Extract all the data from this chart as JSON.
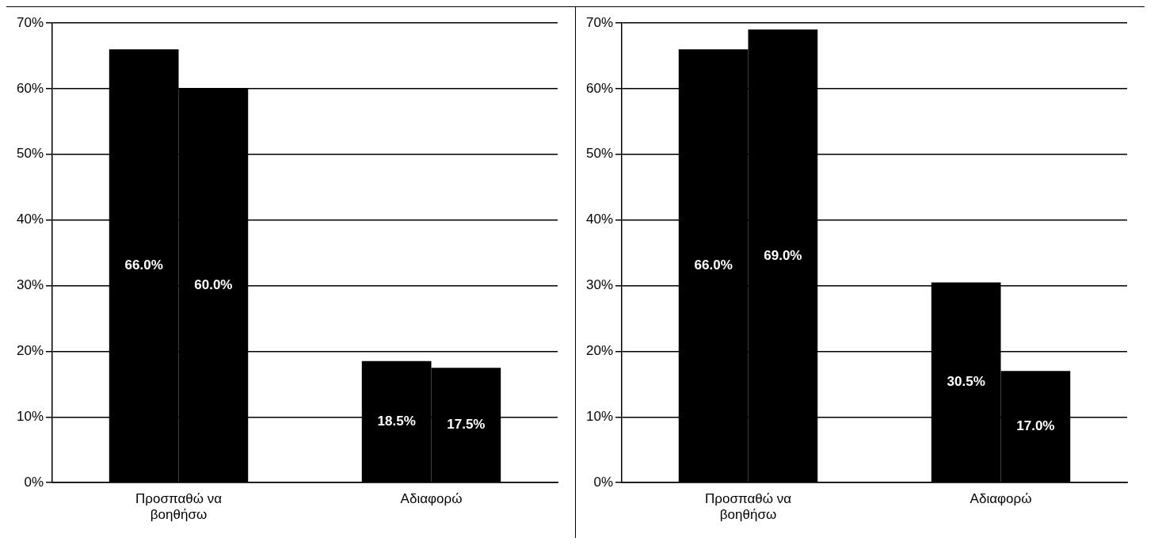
{
  "chart_data": [
    {
      "type": "bar",
      "categories": [
        "Προσπαθώ να βοηθήσω",
        "Αδιαφορώ"
      ],
      "series": [
        {
          "color": "#000000",
          "values": [
            66.0,
            18.5
          ],
          "value_labels": [
            "66.0%",
            "18.5%"
          ]
        },
        {
          "color": "#000000",
          "values": [
            60.0,
            17.5
          ],
          "value_labels": [
            "60.0%",
            "17.5%"
          ]
        }
      ],
      "ylim": [
        0,
        70
      ],
      "yticks": [
        {
          "value": 0,
          "label": "0%"
        },
        {
          "value": 10,
          "label": "10%"
        },
        {
          "value": 20,
          "label": "20%"
        },
        {
          "value": 30,
          "label": "30%"
        },
        {
          "value": 40,
          "label": "40%"
        },
        {
          "value": 50,
          "label": "50%"
        },
        {
          "value": 60,
          "label": "60%"
        },
        {
          "value": 70,
          "label": "70%"
        }
      ],
      "grid": "y"
    },
    {
      "type": "bar",
      "categories": [
        "Προσπαθώ να βοηθήσω",
        "Αδιαφορώ"
      ],
      "series": [
        {
          "color": "#000000",
          "values": [
            66.0,
            30.5
          ],
          "value_labels": [
            "66.0%",
            "30.5%"
          ]
        },
        {
          "color": "#000000",
          "values": [
            69.0,
            17.0
          ],
          "value_labels": [
            "69.0%",
            "17.0%"
          ]
        }
      ],
      "ylim": [
        0,
        70
      ],
      "yticks": [
        {
          "value": 0,
          "label": "0%"
        },
        {
          "value": 10,
          "label": "10%"
        },
        {
          "value": 20,
          "label": "20%"
        },
        {
          "value": 30,
          "label": "30%"
        },
        {
          "value": 40,
          "label": "40%"
        },
        {
          "value": 50,
          "label": "50%"
        },
        {
          "value": 60,
          "label": "60%"
        },
        {
          "value": 70,
          "label": "70%"
        }
      ],
      "grid": "y"
    }
  ]
}
